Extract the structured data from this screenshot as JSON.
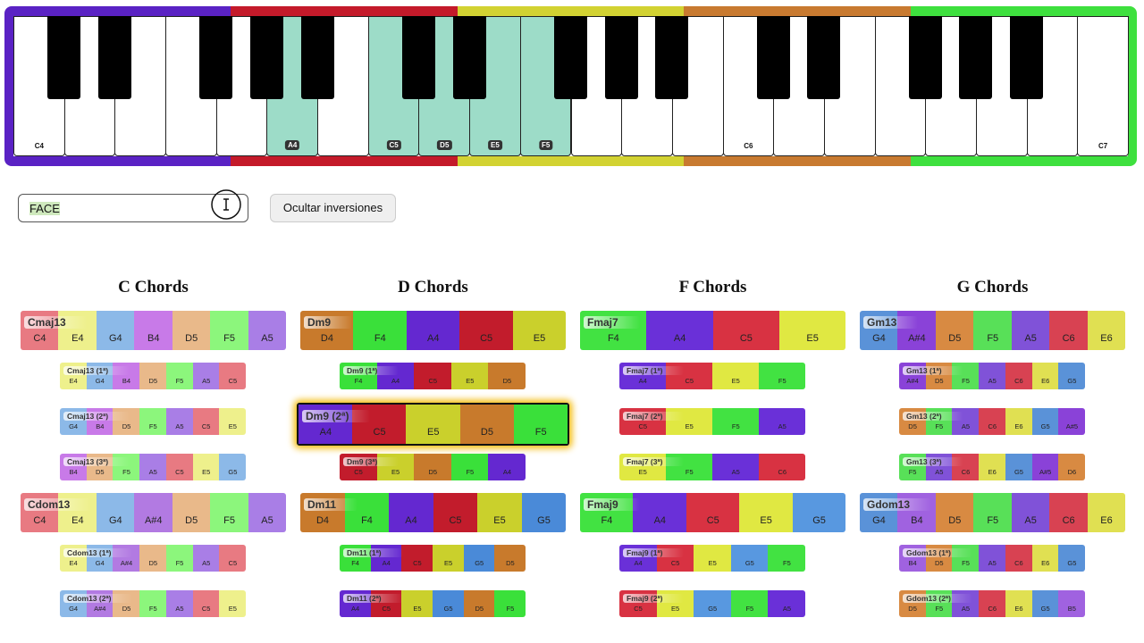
{
  "keyboard": {
    "white_keys": [
      {
        "label": "C4",
        "active": false
      },
      {
        "label": null,
        "active": false
      },
      {
        "label": null,
        "active": false
      },
      {
        "label": null,
        "active": false
      },
      {
        "label": null,
        "active": false
      },
      {
        "label": "A4",
        "active": true
      },
      {
        "label": null,
        "active": false
      },
      {
        "label": "C5",
        "active": true
      },
      {
        "label": "D5",
        "active": true
      },
      {
        "label": "E5",
        "active": true
      },
      {
        "label": "F5",
        "active": true
      },
      {
        "label": null,
        "active": false
      },
      {
        "label": null,
        "active": false
      },
      {
        "label": null,
        "active": false
      },
      {
        "label": "C6",
        "active": false
      },
      {
        "label": null,
        "active": false
      },
      {
        "label": null,
        "active": false
      },
      {
        "label": null,
        "active": false
      },
      {
        "label": null,
        "active": false
      },
      {
        "label": null,
        "active": false
      },
      {
        "label": null,
        "active": false
      },
      {
        "label": "C7",
        "active": false
      }
    ],
    "border_colors": [
      "#5a22c4",
      "#c41a2a",
      "#d2d232",
      "#c87a30",
      "#3ee03e"
    ]
  },
  "search": {
    "value": "FACE"
  },
  "toggle_button": {
    "label": "Ocultar inversiones"
  },
  "columns": [
    {
      "title": "C Chords",
      "note_colors": {
        "C": "#e87a82",
        "D": "#e9b98a",
        "E": "#eef08c",
        "F": "#8cf67c",
        "G": "#8cb9e8",
        "A": "#a97ee6",
        "A#": "#b27ae2",
        "B": "#c87ae8"
      },
      "chords": [
        {
          "name": "Cmaj13",
          "notes": [
            "C4",
            "E4",
            "G4",
            "B4",
            "D5",
            "F5",
            "A5"
          ],
          "inversions": [
            {
              "name": "Cmaj13 (1ª)",
              "notes": [
                "E4",
                "G4",
                "B4",
                "D5",
                "F5",
                "A5",
                "C5"
              ]
            },
            {
              "name": "Cmaj13 (2ª)",
              "notes": [
                "G4",
                "B4",
                "D5",
                "F5",
                "A5",
                "C5",
                "E5"
              ]
            },
            {
              "name": "Cmaj13 (3ª)",
              "notes": [
                "B4",
                "D5",
                "F5",
                "A5",
                "C5",
                "E5",
                "G5"
              ]
            }
          ]
        },
        {
          "name": "Cdom13",
          "notes": [
            "C4",
            "E4",
            "G4",
            "A#4",
            "D5",
            "F5",
            "A5"
          ],
          "inversions": [
            {
              "name": "Cdom13 (1ª)",
              "notes": [
                "E4",
                "G4",
                "A#4",
                "D5",
                "F5",
                "A5",
                "C5"
              ]
            },
            {
              "name": "Cdom13 (2ª)",
              "notes": [
                "G4",
                "A#4",
                "D5",
                "F5",
                "A5",
                "C5",
                "E5"
              ]
            }
          ]
        }
      ]
    },
    {
      "title": "D Chords",
      "note_colors": {
        "C": "#c21c2c",
        "D": "#c87a2c",
        "E": "#cad02c",
        "F": "#3ae03a",
        "G": "#4a8ad8",
        "A": "#6428d0"
      },
      "chords": [
        {
          "name": "Dm9",
          "notes": [
            "D4",
            "F4",
            "A4",
            "C5",
            "E5"
          ],
          "inversions": [
            {
              "name": "Dm9 (1ª)",
              "notes": [
                "F4",
                "A4",
                "C5",
                "E5",
                "D5"
              ]
            },
            {
              "name": "Dm9 (2ª)",
              "notes": [
                "A4",
                "C5",
                "E5",
                "D5",
                "F5"
              ],
              "highlighted": true
            },
            {
              "name": "Dm9 (3ª)",
              "notes": [
                "C5",
                "E5",
                "D5",
                "F5",
                "A4"
              ]
            }
          ]
        },
        {
          "name": "Dm11",
          "notes": [
            "D4",
            "F4",
            "A4",
            "C5",
            "E5",
            "G5"
          ],
          "inversions": [
            {
              "name": "Dm11 (1ª)",
              "notes": [
                "F4",
                "A4",
                "C5",
                "E5",
                "G5",
                "D5"
              ]
            },
            {
              "name": "Dm11 (2ª)",
              "notes": [
                "A4",
                "C5",
                "E5",
                "G5",
                "D5",
                "F5"
              ]
            }
          ]
        }
      ]
    },
    {
      "title": "F Chords",
      "note_colors": {
        "C": "#d83242",
        "D": "#c87838",
        "E": "#e0e842",
        "F": "#42e242",
        "G": "#5898e0",
        "A": "#6a30d8"
      },
      "chords": [
        {
          "name": "Fmaj7",
          "notes": [
            "F4",
            "A4",
            "C5",
            "E5"
          ],
          "inversions": [
            {
              "name": "Fmaj7 (1ª)",
              "notes": [
                "A4",
                "C5",
                "E5",
                "F5"
              ]
            },
            {
              "name": "Fmaj7 (2ª)",
              "notes": [
                "C5",
                "E5",
                "F5",
                "A5"
              ]
            },
            {
              "name": "Fmaj7 (3ª)",
              "notes": [
                "E5",
                "F5",
                "A5",
                "C6"
              ]
            }
          ]
        },
        {
          "name": "Fmaj9",
          "notes": [
            "F4",
            "A4",
            "C5",
            "E5",
            "G5"
          ],
          "inversions": [
            {
              "name": "Fmaj9 (1ª)",
              "notes": [
                "A4",
                "C5",
                "E5",
                "G5",
                "F5"
              ]
            },
            {
              "name": "Fmaj9 (2ª)",
              "notes": [
                "C5",
                "E5",
                "G5",
                "F5",
                "A5"
              ]
            }
          ]
        }
      ]
    },
    {
      "title": "G Chords",
      "note_colors": {
        "C": "#d84252",
        "D": "#d88a42",
        "E": "#e0e052",
        "F": "#58e058",
        "G": "#5a92d8",
        "A": "#8052d8",
        "A#": "#8a42d8",
        "B": "#a062e0"
      },
      "chords": [
        {
          "name": "Gm13",
          "notes": [
            "G4",
            "A#4",
            "D5",
            "F5",
            "A5",
            "C6",
            "E6"
          ],
          "inversions": [
            {
              "name": "Gm13 (1ª)",
              "notes": [
                "A#4",
                "D5",
                "F5",
                "A5",
                "C6",
                "E6",
                "G5"
              ]
            },
            {
              "name": "Gm13 (2ª)",
              "notes": [
                "D5",
                "F5",
                "A5",
                "C6",
                "E6",
                "G5",
                "A#5"
              ]
            },
            {
              "name": "Gm13 (3ª)",
              "notes": [
                "F5",
                "A5",
                "C6",
                "E6",
                "G5",
                "A#5",
                "D6"
              ]
            }
          ]
        },
        {
          "name": "Gdom13",
          "notes": [
            "G4",
            "B4",
            "D5",
            "F5",
            "A5",
            "C6",
            "E6"
          ],
          "inversions": [
            {
              "name": "Gdom13 (1ª)",
              "notes": [
                "B4",
                "D5",
                "F5",
                "A5",
                "C6",
                "E6",
                "G5"
              ]
            },
            {
              "name": "Gdom13 (2ª)",
              "notes": [
                "D5",
                "F5",
                "A5",
                "C6",
                "E6",
                "G5",
                "B5"
              ]
            }
          ]
        }
      ]
    }
  ]
}
